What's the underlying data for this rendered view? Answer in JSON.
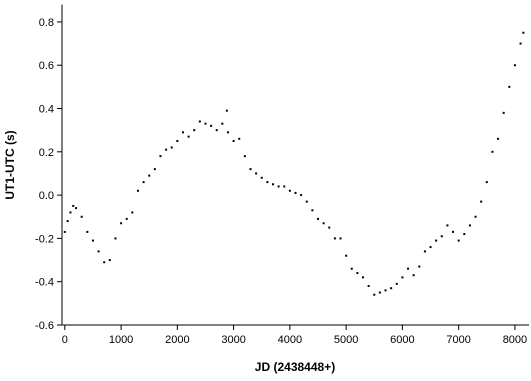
{
  "chart_data": {
    "type": "scatter",
    "x_label": "JD (2438448+)",
    "y_label": "UT1-UTC (s)",
    "xlim": [
      -50,
      8250
    ],
    "ylim": [
      -0.6,
      0.88
    ],
    "xticks": [
      0,
      1000,
      2000,
      3000,
      4000,
      5000,
      6000,
      7000,
      8000
    ],
    "yticks": [
      -0.6,
      -0.4,
      -0.2,
      {
        "value": 0,
        "label": "0.0"
      },
      0.2,
      0.4,
      0.6,
      0.8
    ],
    "color": "#000000",
    "x": [
      0,
      50,
      100,
      150,
      200,
      300,
      400,
      500,
      600,
      700,
      800,
      900,
      1000,
      1100,
      1200,
      1300,
      1400,
      1500,
      1600,
      1700,
      1800,
      1900,
      2000,
      2100,
      2200,
      2300,
      2400,
      2500,
      2600,
      2700,
      2800,
      2900,
      3000,
      3100,
      3200,
      3300,
      3400,
      3500,
      3600,
      3700,
      3800,
      3900,
      4000,
      4100,
      4200,
      4300,
      4400,
      4500,
      4600,
      4700,
      4800,
      4900,
      5000,
      5100,
      5200,
      5300,
      5400,
      5500,
      5600,
      5700,
      5800,
      5900,
      6000,
      6100,
      6200,
      6300,
      6400,
      6500,
      6600,
      6700,
      6800,
      6900,
      7000,
      7100,
      7200,
      7300,
      7400,
      7500,
      7600,
      7700,
      7800,
      7900,
      8000,
      8100,
      8150,
      2880
    ],
    "values": [
      -0.17,
      -0.12,
      -0.08,
      -0.05,
      -0.06,
      -0.1,
      -0.17,
      -0.21,
      -0.26,
      -0.31,
      -0.3,
      -0.2,
      -0.13,
      -0.11,
      -0.08,
      0.02,
      0.06,
      0.09,
      0.12,
      0.18,
      0.21,
      0.22,
      0.25,
      0.29,
      0.27,
      0.3,
      0.34,
      0.33,
      0.32,
      0.3,
      0.33,
      0.29,
      0.25,
      0.26,
      0.18,
      0.12,
      0.1,
      0.08,
      0.06,
      0.05,
      0.04,
      0.04,
      0.02,
      0.01,
      0,
      -0.03,
      -0.07,
      -0.11,
      -0.13,
      -0.15,
      -0.2,
      -0.2,
      -0.28,
      -0.34,
      -0.36,
      -0.38,
      -0.42,
      -0.46,
      -0.45,
      -0.44,
      -0.43,
      -0.41,
      -0.38,
      -0.34,
      -0.37,
      -0.33,
      -0.26,
      -0.24,
      -0.21,
      -0.19,
      -0.14,
      -0.17,
      -0.21,
      -0.18,
      -0.14,
      -0.1,
      -0.03,
      0.06,
      0.2,
      0.26,
      0.38,
      0.5,
      0.6,
      0.7,
      0.75,
      0.39
    ]
  }
}
